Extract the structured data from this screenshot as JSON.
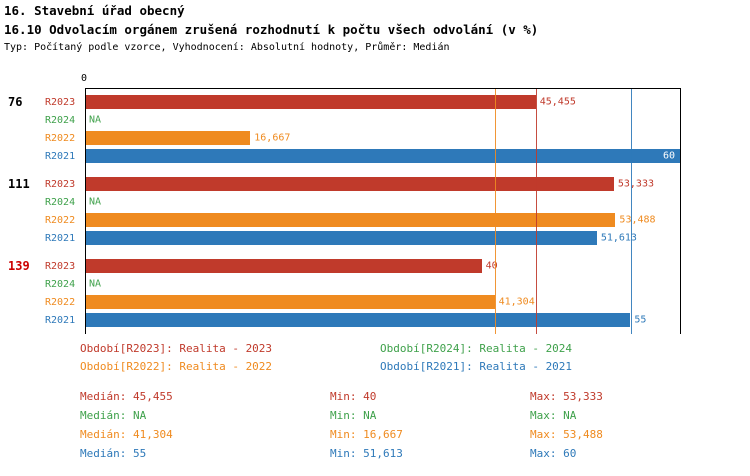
{
  "title1": "16. Stavební úřad obecný",
  "title2": "16.10 Odvolacím orgánem zrušená rozhodnutí k počtu všech odvolání (v %)",
  "subtitle": "Typ: Počítaný podle vzorce, Vyhodnocení: Absolutní hodnoty, Průměr: Medián",
  "chart_data": {
    "type": "bar",
    "orientation": "horizontal",
    "axis_origin_label": "0",
    "axis_max": 60,
    "series_colors": {
      "R2023": "#c03a2b",
      "R2024": "#3fa14b",
      "R2022": "#ef8b20",
      "R2021": "#2e79b9"
    },
    "na_color": "#3fa14b",
    "groups": [
      {
        "label": "76",
        "label_color": "#000000",
        "bars": [
          {
            "series": "R2023",
            "value": 45.455,
            "display": "45,455"
          },
          {
            "series": "R2024",
            "value": null,
            "display": "NA"
          },
          {
            "series": "R2022",
            "value": 16.667,
            "display": "16,667"
          },
          {
            "series": "R2021",
            "value": 60,
            "display": "60"
          }
        ]
      },
      {
        "label": "111",
        "label_color": "#000000",
        "bars": [
          {
            "series": "R2023",
            "value": 53.333,
            "display": "53,333"
          },
          {
            "series": "R2024",
            "value": null,
            "display": "NA"
          },
          {
            "series": "R2022",
            "value": 53.488,
            "display": "53,488"
          },
          {
            "series": "R2021",
            "value": 51.613,
            "display": "51,613"
          }
        ]
      },
      {
        "label": "139",
        "label_color": "#cc0000",
        "bars": [
          {
            "series": "R2023",
            "value": 40,
            "display": "40"
          },
          {
            "series": "R2024",
            "value": null,
            "display": "NA"
          },
          {
            "series": "R2022",
            "value": 41.304,
            "display": "41,304"
          },
          {
            "series": "R2021",
            "value": 55,
            "display": "55"
          }
        ]
      }
    ],
    "median_lines": [
      {
        "series": "R2022",
        "value": 41.304
      },
      {
        "series": "R2023",
        "value": 45.455
      },
      {
        "series": "R2021",
        "value": 55
      }
    ]
  },
  "legend": [
    {
      "label": "Období[R2023]: Realita - 2023",
      "series": "R2023",
      "col": 0,
      "row": 0
    },
    {
      "label": "Období[R2024]: Realita - 2024",
      "series": "R2024",
      "col": 1,
      "row": 0
    },
    {
      "label": "Období[R2022]: Realita - 2022",
      "series": "R2022",
      "col": 0,
      "row": 1
    },
    {
      "label": "Období[R2021]: Realita - 2021",
      "series": "R2021",
      "col": 1,
      "row": 1
    }
  ],
  "stats": [
    {
      "series": "R2023",
      "median": "Medián: 45,455",
      "min": "Min: 40",
      "max": "Max: 53,333"
    },
    {
      "series": "R2024",
      "median": "Medián: NA",
      "min": "Min: NA",
      "max": "Max: NA"
    },
    {
      "series": "R2022",
      "median": "Medián: 41,304",
      "min": "Min: 16,667",
      "max": "Max: 53,488"
    },
    {
      "series": "R2021",
      "median": "Medián: 55",
      "min": "Min: 51,613",
      "max": "Max: 60"
    }
  ]
}
